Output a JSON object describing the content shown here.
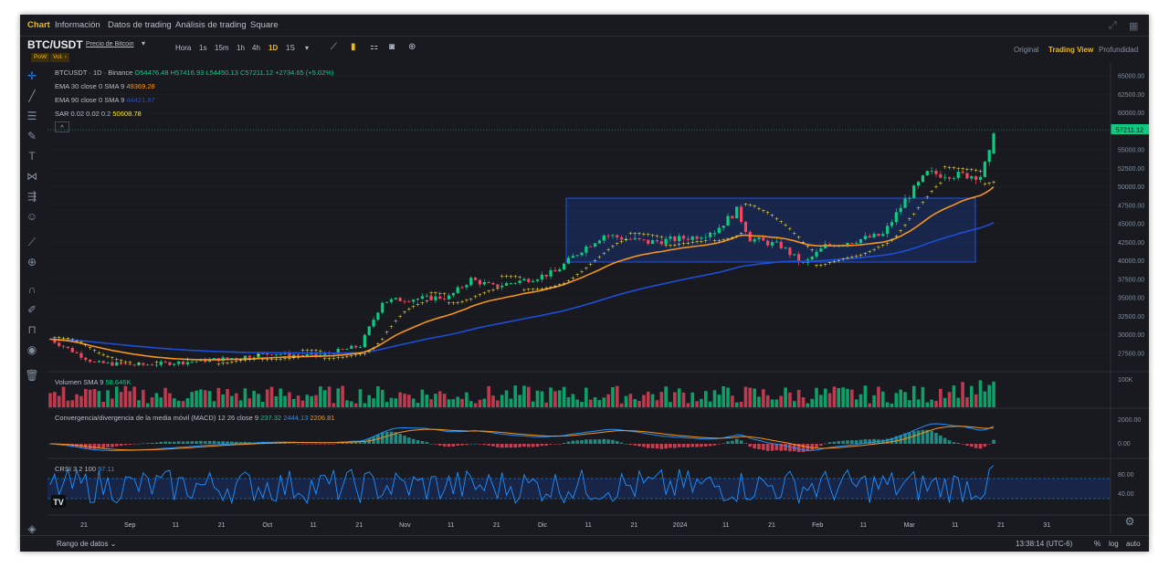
{
  "tabs": [
    {
      "label": "Chart",
      "active": true
    },
    {
      "label": "Información",
      "active": false
    },
    {
      "label": "Datos de trading",
      "active": false
    },
    {
      "label": "Análisis de trading",
      "active": false
    },
    {
      "label": "Square",
      "active": false
    }
  ],
  "window_icons": [
    "expand-icon",
    "grid-icon"
  ],
  "symbol": {
    "pair": "BTC/USDT",
    "price_link": "Precio de Bitcoin",
    "tags": [
      "PoW",
      "Vol."
    ]
  },
  "timeframes": [
    {
      "label": "Hora",
      "active": false
    },
    {
      "label": "1s",
      "active": false
    },
    {
      "label": "15m",
      "active": false
    },
    {
      "label": "1h",
      "active": false
    },
    {
      "label": "4h",
      "active": false
    },
    {
      "label": "1D",
      "active": true
    },
    {
      "label": "1S",
      "active": false
    }
  ],
  "toolbar_icons": [
    "indicator-icon",
    "candle-style-icon",
    "layout-icon",
    "camera-icon",
    "add-icon"
  ],
  "views": [
    {
      "label": "Original",
      "active": false
    },
    {
      "label": "Trading View",
      "active": true
    },
    {
      "label": "Profundidad",
      "active": false
    }
  ],
  "left_tools": [
    "crosshair-icon",
    "trendline-icon",
    "fib-icon",
    "brush-icon",
    "text-icon",
    "pattern-icon",
    "forecast-icon",
    "emoji-icon",
    "ruler-icon",
    "zoom-in-icon",
    "magnet-icon",
    "lock-drawing-icon",
    "lock-icon",
    "eye-icon",
    "trash-icon"
  ],
  "legend": {
    "symbol_line": "BTCUSDT · 1D · Binance",
    "ohlc": {
      "o": "O54476.48",
      "h": "H57416.93",
      "l": "L54450.13",
      "c": "C57211.12",
      "chg": "+2734.65 (+5.02%)"
    },
    "ema30_label": "EMA 30 close 0 SMA 9",
    "ema30_value": "49369.28",
    "ema90_label": "EMA 90 close 0 SMA 9",
    "ema90_value": "44421.87",
    "sar_label": "SAR 0.02 0.02 0.2",
    "sar_value": "50608.78",
    "collapse": "^"
  },
  "last_price": "57211.12",
  "price_axis": [
    "65000.00",
    "62500.00",
    "60000.00",
    "57500.00",
    "55000.00",
    "52500.00",
    "50000.00",
    "47500.00",
    "45000.00",
    "42500.00",
    "40000.00",
    "37500.00",
    "35000.00",
    "32500.00",
    "30000.00",
    "27500.00"
  ],
  "volume": {
    "label": "Volumen SMA 9",
    "value": "58.646K",
    "axis": "100K"
  },
  "macd": {
    "label": "Convergencia/divergencia de la media móvil (MACD) 12 26 close 9",
    "v1": "237.32",
    "v2": "2444.13",
    "v3": "2206.81",
    "axis": [
      "2000.00",
      "0.00"
    ]
  },
  "crsi": {
    "label": "CRSI 3 2 100",
    "value": "97.11",
    "axis": [
      "80.00",
      "40.00"
    ]
  },
  "time_axis": [
    "21",
    "Sep",
    "11",
    "21",
    "Oct",
    "11",
    "21",
    "Nov",
    "11",
    "21",
    "Dic",
    "11",
    "21",
    "2024",
    "11",
    "21",
    "Feb",
    "11",
    "Mar",
    "11",
    "21",
    "31"
  ],
  "bottom": {
    "range": "Rango de datos",
    "time": "13:38:14 (UTC-6)",
    "percent": "%",
    "log": "log",
    "auto": "auto"
  },
  "colors": {
    "up": "#0ecb81",
    "down": "#f6465d",
    "ema30": "#f7931a",
    "ema90": "#1e4dd8",
    "sar": "#f6e33a",
    "accent": "#f0b90b",
    "box": "#1e53e5"
  },
  "chart_data": {
    "type": "candlestick",
    "ylim": [
      26000,
      66000
    ],
    "box": {
      "y": [
        40000,
        48300
      ]
    },
    "closes_anchor": [
      {
        "t": 0,
        "c": 29400
      },
      {
        "t": 10,
        "c": 26200
      },
      {
        "t": 20,
        "c": 25900
      },
      {
        "t": 30,
        "c": 26300
      },
      {
        "t": 40,
        "c": 26800
      },
      {
        "t": 50,
        "c": 27500
      },
      {
        "t": 60,
        "c": 27100
      },
      {
        "t": 70,
        "c": 28500
      },
      {
        "t": 75,
        "c": 34500
      },
      {
        "t": 80,
        "c": 34800
      },
      {
        "t": 90,
        "c": 35100
      },
      {
        "t": 95,
        "c": 37500
      },
      {
        "t": 100,
        "c": 36500
      },
      {
        "t": 110,
        "c": 37800
      },
      {
        "t": 114,
        "c": 38500
      },
      {
        "t": 120,
        "c": 41500
      },
      {
        "t": 125,
        "c": 43500
      },
      {
        "t": 135,
        "c": 42500
      },
      {
        "t": 145,
        "c": 43200
      },
      {
        "t": 150,
        "c": 44000
      },
      {
        "t": 155,
        "c": 46800
      },
      {
        "t": 158,
        "c": 43000
      },
      {
        "t": 165,
        "c": 42000
      },
      {
        "t": 170,
        "c": 39500
      },
      {
        "t": 175,
        "c": 42000
      },
      {
        "t": 182,
        "c": 42800
      },
      {
        "t": 188,
        "c": 43500
      },
      {
        "t": 193,
        "c": 48200
      },
      {
        "t": 198,
        "c": 51800
      },
      {
        "t": 205,
        "c": 51600
      },
      {
        "t": 210,
        "c": 51500
      },
      {
        "t": 212,
        "c": 54400
      },
      {
        "t": 213,
        "c": 57211
      }
    ]
  }
}
